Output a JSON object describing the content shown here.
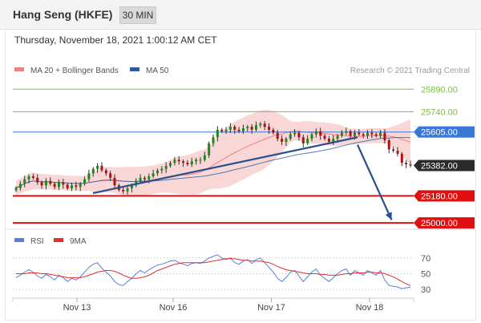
{
  "header": {
    "title": "Hang Seng (HKFE)",
    "interval": "30 MIN",
    "datetime": "Thursday, November 18, 2021 1:00:12 AM CET"
  },
  "colors": {
    "band": "#f6c6c6",
    "ma20": "#f08080",
    "ma50": "#2e5c9e",
    "resistance": "#7cbc4c",
    "support": "#e01010",
    "pivot": "#3a78d8",
    "price_label": "#2b2b2b",
    "up_candle": "#1a8a1a",
    "down_candle": "#b01010",
    "trendline": "#2a4f8f",
    "rsi": "#5b7fd6",
    "rsi_ma": "#e03030"
  },
  "chart_data": [
    {
      "type": "candlestick",
      "legend": [
        {
          "label": "MA 20 + Bollinger Bands",
          "color": "#f08080"
        },
        {
          "label": "MA 50",
          "color": "#2e5c9e"
        }
      ],
      "source": "Research © 2021 Trading Central",
      "ylim": [
        24990,
        25950
      ],
      "x_ticks": [
        {
          "label": "Nov 13",
          "pos": 0.16
        },
        {
          "label": "Nov 16",
          "pos": 0.4
        },
        {
          "label": "Nov 17",
          "pos": 0.645
        },
        {
          "label": "Nov 18",
          "pos": 0.89
        }
      ],
      "levels": [
        {
          "value": 25890,
          "label": "25890.00",
          "kind": "resistance"
        },
        {
          "value": 25740,
          "label": "25740.00",
          "kind": "resistance"
        },
        {
          "value": 25605,
          "label": "25605.00",
          "kind": "pivot"
        },
        {
          "value": 25382,
          "label": "25382.00",
          "kind": "last"
        },
        {
          "value": 25180,
          "label": "25180.00",
          "kind": "support"
        },
        {
          "value": 25000,
          "label": "25000.00",
          "kind": "support"
        }
      ],
      "close": [
        25232,
        25260,
        25290,
        25310,
        25300,
        25270,
        25250,
        25280,
        25260,
        25240,
        25270,
        25255,
        25230,
        25250,
        25240,
        25260,
        25290,
        25330,
        25360,
        25380,
        25350,
        25330,
        25300,
        25250,
        25220,
        25210,
        25230,
        25250,
        25280,
        25300,
        25290,
        25310,
        25330,
        25350,
        25360,
        25380,
        25400,
        25420,
        25410,
        25400,
        25390,
        25410,
        25420,
        25420,
        25450,
        25530,
        25570,
        25620,
        25610,
        25620,
        25640,
        25620,
        25610,
        25630,
        25640,
        25620,
        25650,
        25660,
        25640,
        25620,
        25600,
        25560,
        25540,
        25560,
        25590,
        25600,
        25570,
        25530,
        25560,
        25590,
        25610,
        25580,
        25560,
        25540,
        25560,
        25580,
        25600,
        25610,
        25580,
        25600,
        25590,
        25580,
        25600,
        25590,
        25580,
        25600,
        25550,
        25490,
        25480,
        25460,
        25400,
        25390,
        25382
      ],
      "trendlines": [
        {
          "from": [
            0.2,
            25198
          ],
          "to": [
            0.86,
            25570
          ]
        },
        {
          "from": [
            0.86,
            25520
          ],
          "to": [
            0.945,
            25020
          ]
        }
      ]
    },
    {
      "type": "line",
      "legend": [
        {
          "label": "RSI",
          "color": "#5b7fd6"
        },
        {
          "label": "9MA",
          "color": "#e03030"
        }
      ],
      "ylim": [
        25,
        80
      ],
      "y_ticks": [
        {
          "value": 70,
          "label": "70"
        },
        {
          "value": 50,
          "label": "50"
        },
        {
          "value": 30,
          "label": "30"
        }
      ],
      "rsi": [
        45,
        48,
        52,
        55,
        52,
        47,
        44,
        49,
        46,
        42,
        48,
        45,
        40,
        44,
        42,
        46,
        52,
        58,
        62,
        64,
        57,
        52,
        47,
        40,
        36,
        35,
        40,
        44,
        50,
        54,
        51,
        55,
        58,
        61,
        62,
        64,
        66,
        67,
        64,
        62,
        60,
        63,
        64,
        63,
        66,
        70,
        72,
        74,
        70,
        68,
        70,
        64,
        62,
        66,
        68,
        63,
        68,
        70,
        64,
        58,
        52,
        44,
        40,
        45,
        52,
        54,
        47,
        40,
        46,
        52,
        56,
        48,
        44,
        40,
        45,
        50,
        54,
        56,
        48,
        54,
        51,
        48,
        54,
        51,
        48,
        54,
        42,
        35,
        34,
        33,
        31,
        32,
        33
      ],
      "ma": [
        50,
        50,
        50,
        51,
        51,
        51,
        50,
        50,
        49,
        48,
        47,
        46,
        45,
        45,
        45,
        45,
        46,
        48,
        50,
        52,
        53,
        54,
        54,
        53,
        51,
        48,
        46,
        44,
        44,
        45,
        46,
        48,
        51,
        54,
        56,
        58,
        60,
        62,
        63,
        64,
        64,
        64,
        64,
        64,
        64,
        65,
        66,
        67,
        68,
        69,
        69,
        69,
        68,
        67,
        67,
        66,
        66,
        66,
        65,
        64,
        62,
        59,
        57,
        55,
        54,
        53,
        52,
        51,
        50,
        50,
        50,
        49,
        49,
        48,
        48,
        48,
        49,
        50,
        50,
        51,
        51,
        51,
        52,
        52,
        51,
        51,
        50,
        48,
        46,
        43,
        40,
        37,
        35
      ]
    }
  ]
}
